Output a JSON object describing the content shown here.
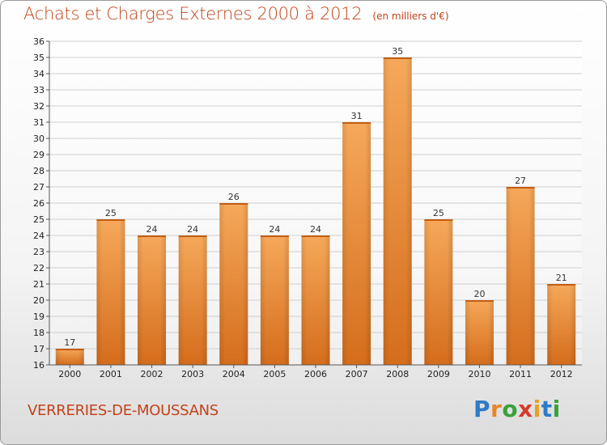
{
  "title": "Achats et Charges Externes 2000 à 2012",
  "unit_label": "(en milliers d'€)",
  "commune": "VERRERIES-DE-MOUSSANS",
  "logo": {
    "letters": [
      "P",
      "r",
      "o",
      "x",
      "i",
      "t",
      "i"
    ],
    "colors": [
      "#2e7bc4",
      "#e8862a",
      "#3aa13a",
      "#d63a2a",
      "#e8a020",
      "#2e7bc4",
      "#3aa13a"
    ]
  },
  "chart_data": {
    "type": "bar",
    "categories": [
      "2000",
      "2001",
      "2002",
      "2003",
      "2004",
      "2005",
      "2006",
      "2007",
      "2008",
      "2009",
      "2010",
      "2011",
      "2012"
    ],
    "values": [
      17,
      25,
      24,
      24,
      26,
      24,
      24,
      31,
      35,
      25,
      20,
      27,
      21
    ],
    "title": "Achats et Charges Externes 2000 à 2012",
    "ylim": [
      16,
      36
    ],
    "yticks": [
      16,
      17,
      18,
      19,
      20,
      21,
      22,
      23,
      24,
      25,
      26,
      27,
      28,
      29,
      30,
      31,
      32,
      33,
      34,
      35,
      36
    ],
    "grid": true,
    "bar_color_top": "#f6a85a",
    "bar_color_bottom": "#d46d1c"
  }
}
